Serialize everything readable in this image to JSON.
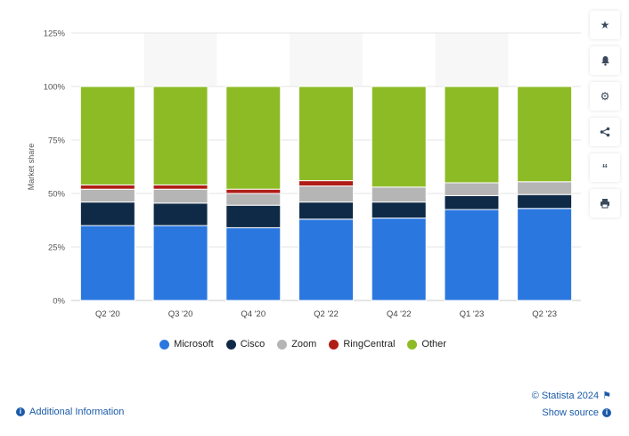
{
  "chart_data": {
    "type": "bar",
    "stacked": true,
    "categories": [
      "Q2 '20",
      "Q3 '20",
      "Q4 '20",
      "Q2 '22",
      "Q4 '22",
      "Q1 '23",
      "Q2 '23"
    ],
    "ylabel": "Market share",
    "ylim": [
      0,
      125
    ],
    "yticks": [
      "0%",
      "25%",
      "50%",
      "75%",
      "100%",
      "125%"
    ],
    "ytick_values": [
      0,
      25,
      50,
      75,
      100,
      125
    ],
    "grid": true,
    "legend_position": "bottom",
    "series": [
      {
        "name": "Microsoft",
        "color": "#2b77e0",
        "values": [
          35,
          35,
          34,
          38,
          38.5,
          42.5,
          43
        ]
      },
      {
        "name": "Cisco",
        "color": "#0e2a47",
        "values": [
          11,
          10.5,
          10.5,
          8,
          7.5,
          6.5,
          6.5
        ]
      },
      {
        "name": "Zoom",
        "color": "#b5b5b5",
        "values": [
          6,
          6.5,
          5.5,
          7.5,
          7,
          6,
          6
        ]
      },
      {
        "name": "RingCentral",
        "color": "#b01c16",
        "values": [
          2,
          2,
          2,
          2.5,
          0,
          0,
          0
        ]
      },
      {
        "name": "Other",
        "color": "#8dbb25",
        "values": [
          46,
          46,
          48,
          44,
          47,
          45,
          44.5
        ]
      }
    ]
  },
  "toolbar": {
    "icons": [
      "star-icon",
      "bell-icon",
      "gear-icon",
      "share-icon",
      "quote-icon",
      "print-icon"
    ]
  },
  "footer": {
    "credit": "© Statista 2024",
    "show_source": "Show source",
    "additional_info": "Additional Information"
  }
}
